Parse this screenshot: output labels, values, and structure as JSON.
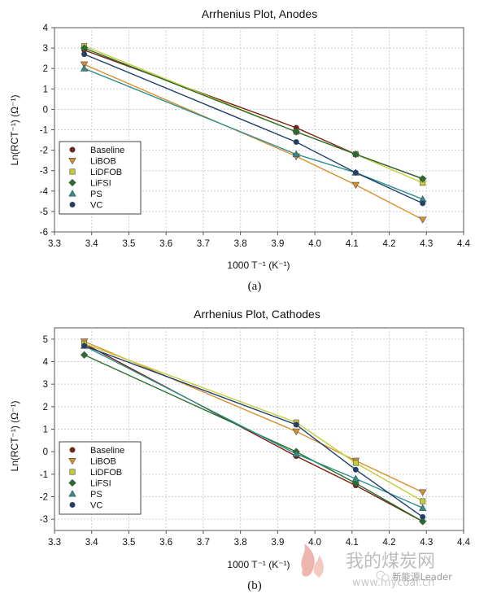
{
  "chart_data": [
    {
      "type": "line",
      "title": "Arrhenius Plot, Anodes",
      "xlabel": "1000 T⁻¹ (K⁻¹)",
      "ylabel": "Ln(RCT⁻¹) (Ω⁻¹)",
      "xlim": [
        3.3,
        4.4
      ],
      "ylim": [
        -6,
        4
      ],
      "xticks": [
        "3.3",
        "3.4",
        "3.5",
        "3.6",
        "3.7",
        "3.8",
        "3.9",
        "4.0",
        "4.1",
        "4.2",
        "4.3",
        "4.4"
      ],
      "yticks": [
        "4",
        "3",
        "2",
        "1",
        "0",
        "-1",
        "-2",
        "-3",
        "-4",
        "-5",
        "-6"
      ],
      "grid": true,
      "legend_position": "bottom-left",
      "panel_label": "(a)",
      "x": [
        3.38,
        3.95,
        4.11,
        4.29
      ],
      "series": [
        {
          "name": "Baseline",
          "marker": "circle",
          "color": "#7a1f14",
          "values": [
            2.9,
            -0.9,
            -2.2,
            -3.4
          ]
        },
        {
          "name": "LiBOB",
          "marker": "triangle-down",
          "color": "#d8902e",
          "values": [
            2.2,
            -2.3,
            -3.7,
            -5.4
          ]
        },
        {
          "name": "LiDFOB",
          "marker": "square",
          "color": "#c6cc3a",
          "values": [
            3.1,
            -1.1,
            -2.2,
            -3.6
          ]
        },
        {
          "name": "LiFSI",
          "marker": "diamond",
          "color": "#2a6e2c",
          "values": [
            3.0,
            -1.1,
            -2.2,
            -3.4
          ]
        },
        {
          "name": "PS",
          "marker": "triangle-up",
          "color": "#2e8f8c",
          "values": [
            2.0,
            -2.2,
            -3.1,
            -4.4
          ]
        },
        {
          "name": "VC",
          "marker": "circle",
          "color": "#1f3f6e",
          "values": [
            2.7,
            -1.6,
            -3.1,
            -4.6
          ]
        }
      ]
    },
    {
      "type": "line",
      "title": "Arrhenius Plot, Cathodes",
      "xlabel": "1000 T⁻¹ (K⁻¹)",
      "ylabel": "Ln(RCT⁻¹) (Ω⁻¹)",
      "xlim": [
        3.3,
        4.4
      ],
      "ylim": [
        -3.5,
        5.5
      ],
      "xticks": [
        "3.3",
        "3.4",
        "3.5",
        "3.6",
        "3.7",
        "3.8",
        "3.9",
        "4.0",
        "4.1",
        "4.2",
        "4.3",
        "4.4"
      ],
      "yticks": [
        "5",
        "4",
        "3",
        "2",
        "1",
        "0",
        "-1",
        "-2",
        "-3"
      ],
      "grid": true,
      "legend_position": "bottom-left",
      "panel_label": "(b)",
      "x": [
        3.38,
        3.95,
        4.11,
        4.29
      ],
      "series": [
        {
          "name": "Baseline",
          "marker": "circle",
          "color": "#7a1f14",
          "values": [
            4.8,
            -0.2,
            -1.5,
            -3.1
          ]
        },
        {
          "name": "LiBOB",
          "marker": "triangle-down",
          "color": "#d8902e",
          "values": [
            4.9,
            0.9,
            -0.4,
            -1.8
          ]
        },
        {
          "name": "LiDFOB",
          "marker": "square",
          "color": "#c6cc3a",
          "values": [
            4.8,
            1.3,
            -0.5,
            -2.2
          ]
        },
        {
          "name": "LiFSI",
          "marker": "diamond",
          "color": "#2a6e2c",
          "values": [
            4.3,
            0.0,
            -1.4,
            -3.1
          ]
        },
        {
          "name": "PS",
          "marker": "triangle-up",
          "color": "#2e8f8c",
          "values": [
            4.7,
            -0.1,
            -1.2,
            -2.5
          ]
        },
        {
          "name": "VC",
          "marker": "circle",
          "color": "#1f3f6e",
          "values": [
            4.7,
            1.2,
            -0.8,
            -2.9
          ]
        }
      ]
    }
  ],
  "watermark": {
    "site_name": "我的煤炭网",
    "site_url": "www.mycoal.cn",
    "account_label": "新能源Leader"
  }
}
